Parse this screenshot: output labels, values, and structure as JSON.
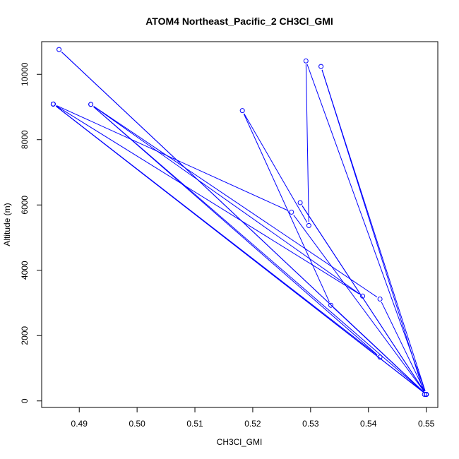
{
  "chart_data": {
    "type": "line",
    "title": "ATOM4 Northeast_Pacific_2 CH3Cl_GMI",
    "xlabel": "CH3Cl_GMI",
    "ylabel": "Altitude (m)",
    "xlim": [
      0.4835,
      0.552
    ],
    "ylim": [
      -200,
      11000
    ],
    "xticks": [
      0.49,
      0.5,
      0.51,
      0.52,
      0.53,
      0.54,
      0.55
    ],
    "xtick_labels": [
      "0.49",
      "0.50",
      "0.51",
      "0.52",
      "0.53",
      "0.54",
      "0.55"
    ],
    "yticks": [
      0,
      2000,
      4000,
      6000,
      8000,
      10000
    ],
    "ytick_labels": [
      "0",
      "2000",
      "4000",
      "6000",
      "8000",
      "10000"
    ],
    "grid": false,
    "color": "#0000ff",
    "series": [
      {
        "points": [
          {
            "x": 0.5497,
            "y": 200
          },
          {
            "x": 0.5318,
            "y": 10240
          },
          {
            "x": 0.55,
            "y": 200
          },
          {
            "x": 0.5292,
            "y": 10410
          },
          {
            "x": 0.5297,
            "y": 5370
          },
          {
            "x": 0.5182,
            "y": 8890
          },
          {
            "x": 0.5335,
            "y": 2930
          },
          {
            "x": 0.55,
            "y": 200
          },
          {
            "x": 0.4865,
            "y": 10760
          },
          {
            "x": 0.55,
            "y": 200
          },
          {
            "x": 0.4855,
            "y": 9090
          },
          {
            "x": 0.542,
            "y": 1340
          },
          {
            "x": 0.492,
            "y": 9080
          },
          {
            "x": 0.539,
            "y": 3210
          },
          {
            "x": 0.4855,
            "y": 9090
          },
          {
            "x": 0.55,
            "y": 200
          },
          {
            "x": 0.5282,
            "y": 6070
          },
          {
            "x": 0.55,
            "y": 200
          },
          {
            "x": 0.542,
            "y": 3120
          },
          {
            "x": 0.492,
            "y": 9080
          },
          {
            "x": 0.55,
            "y": 200
          },
          {
            "x": 0.5267,
            "y": 5780
          },
          {
            "x": 0.4855,
            "y": 9090
          },
          {
            "x": 0.55,
            "y": 200
          }
        ]
      }
    ]
  }
}
